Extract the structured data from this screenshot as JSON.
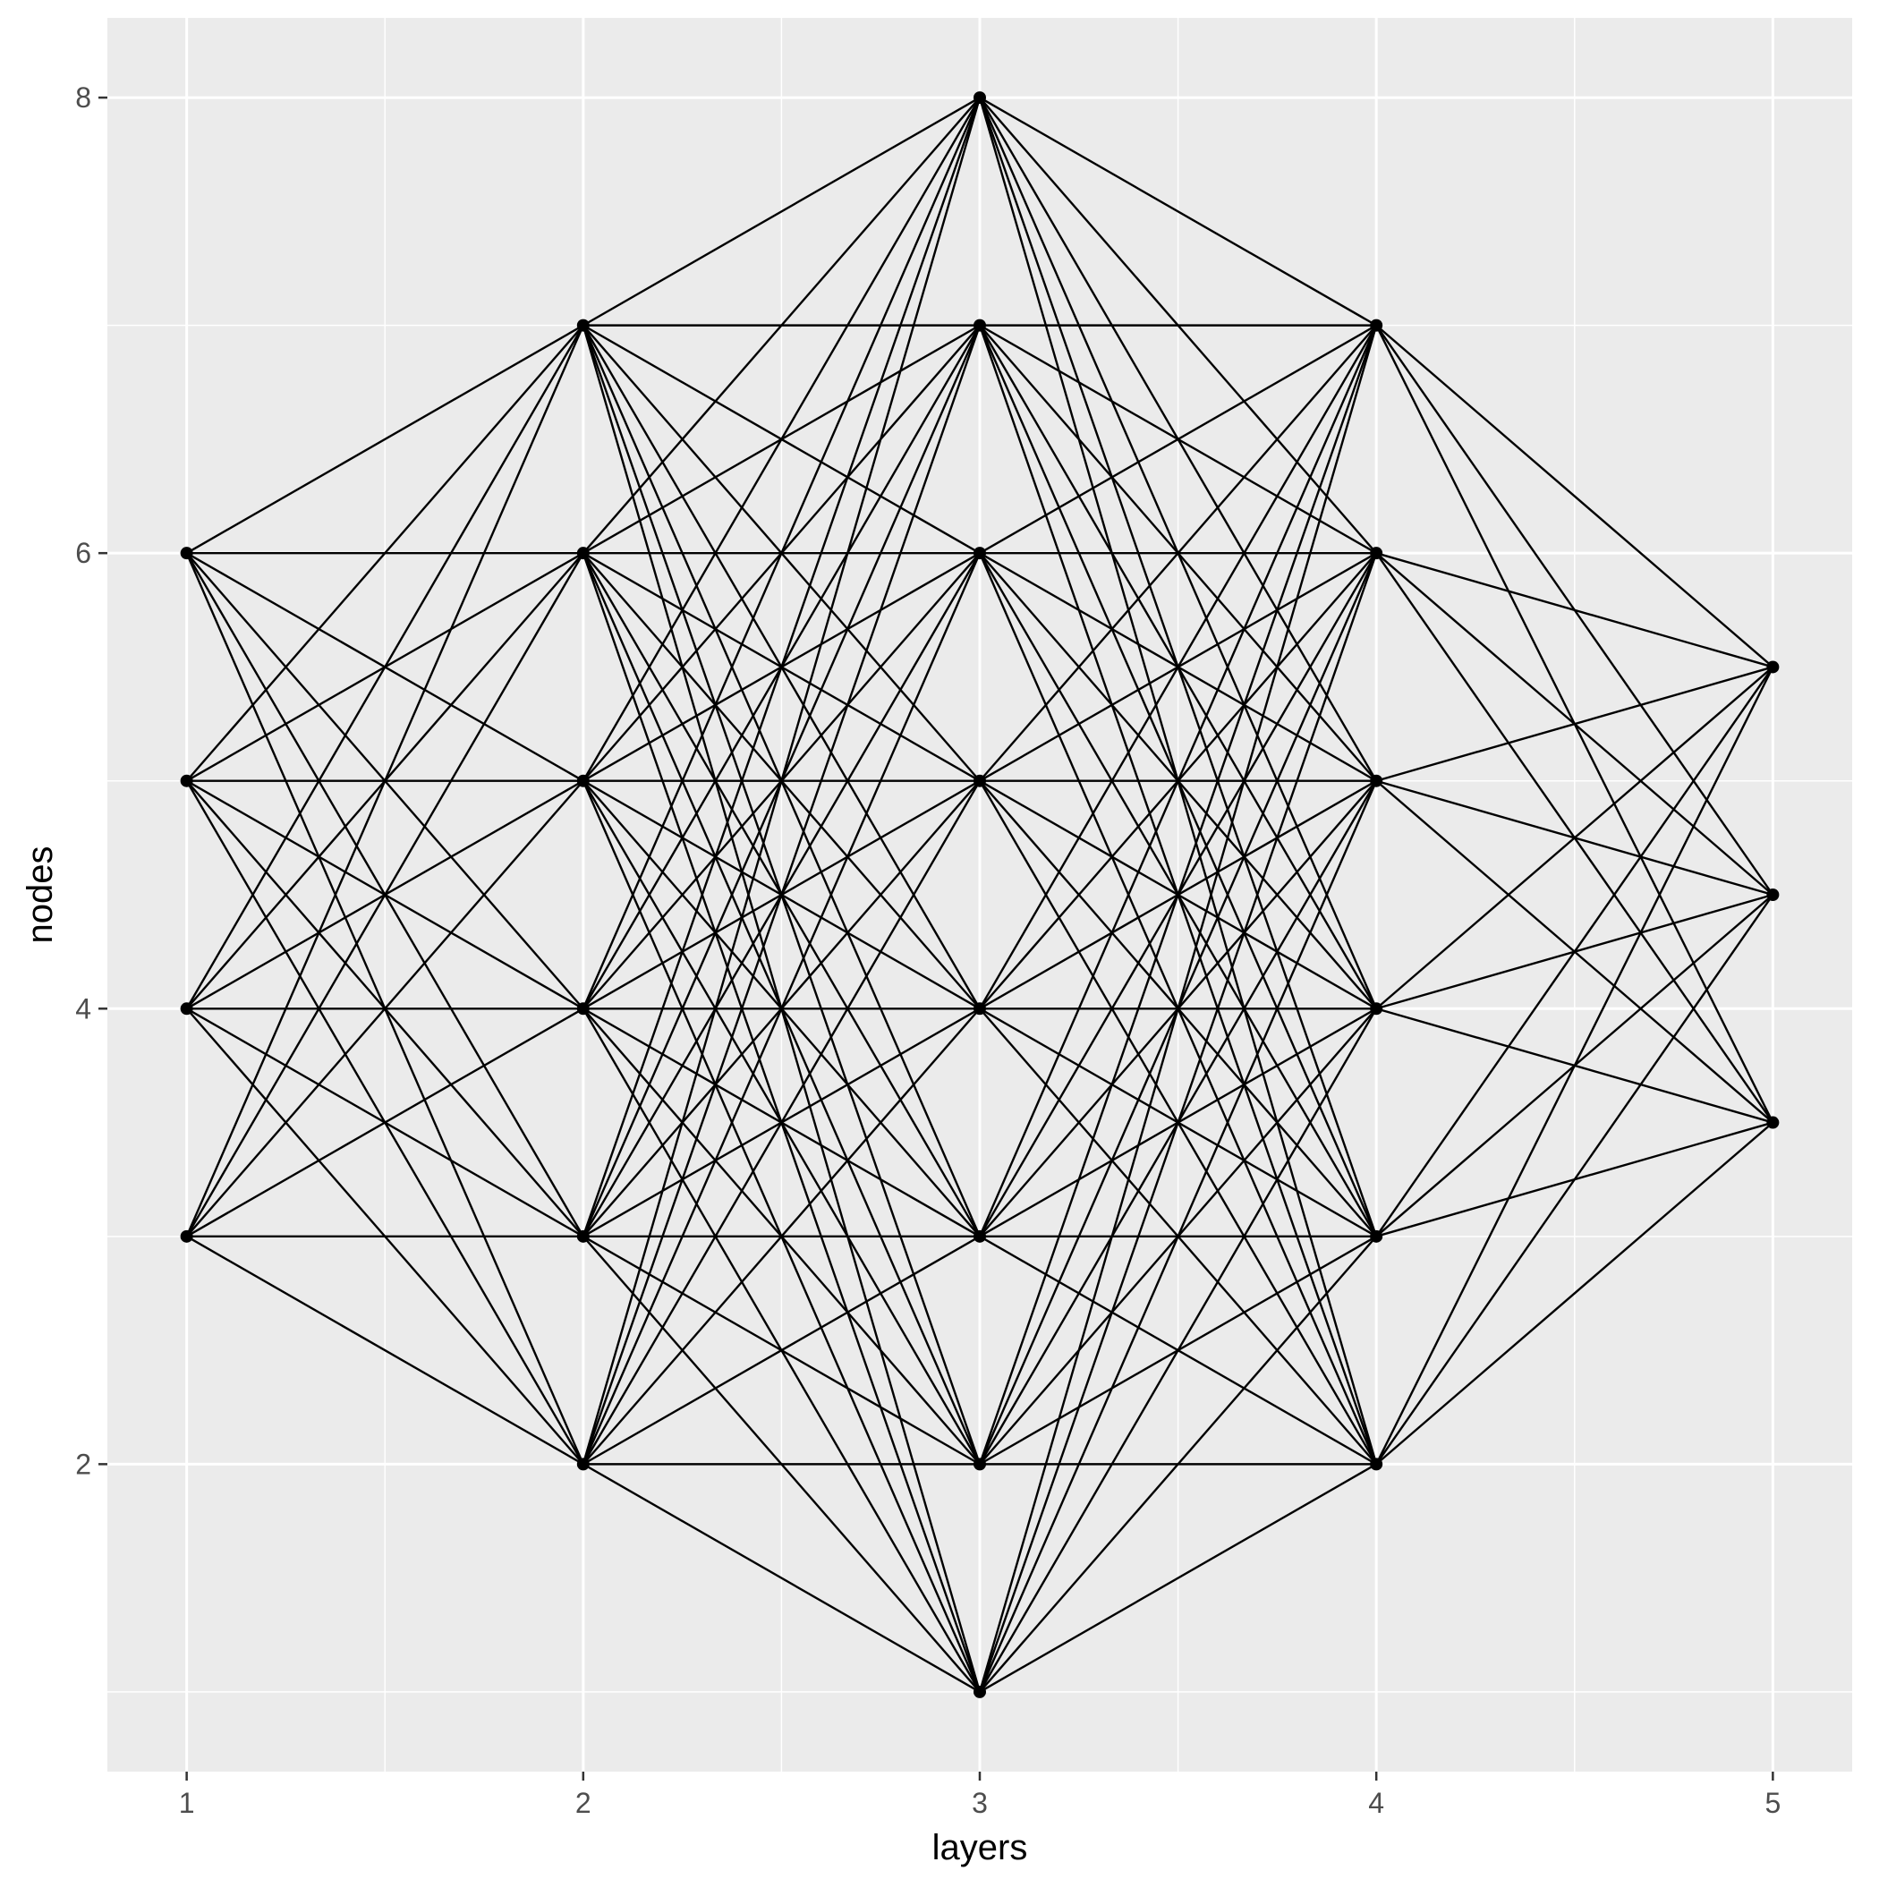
{
  "chart_data": {
    "type": "scatter",
    "description_kind": "neural-network layer graph",
    "xlabel": "layers",
    "ylabel": "nodes",
    "xlim": [
      0.8,
      5.2
    ],
    "ylim": [
      0.65,
      8.35
    ],
    "x_ticks": [
      1,
      2,
      3,
      4,
      5
    ],
    "y_ticks": [
      2,
      4,
      6,
      8
    ],
    "grid": true,
    "panel_background": "#ebebeb",
    "grid_color": "#ffffff",
    "line_color": "#000000",
    "layers": [
      {
        "x": 1,
        "nodes": [
          3,
          4,
          5,
          6
        ]
      },
      {
        "x": 2,
        "nodes": [
          2,
          3,
          4,
          5,
          6,
          7
        ]
      },
      {
        "x": 3,
        "nodes": [
          1,
          2,
          3,
          4,
          5,
          6,
          7,
          8
        ]
      },
      {
        "x": 4,
        "nodes": [
          2,
          3,
          4,
          5,
          6,
          7
        ]
      },
      {
        "x": 5,
        "nodes": [
          3.5,
          4.5,
          5.5
        ]
      }
    ],
    "edges": "fully connected between adjacent layers"
  }
}
